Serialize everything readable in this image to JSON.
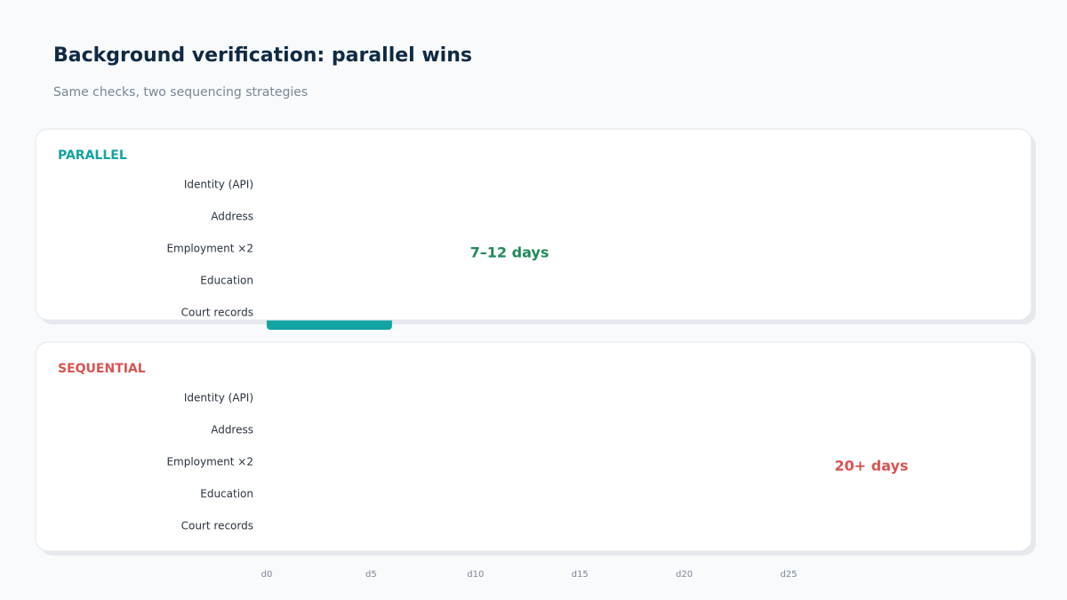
{
  "chart_data": {
    "type": "gantt",
    "title": "Background verification: parallel wins",
    "subtitle": "Same checks, two sequencing strategies",
    "xlim": [
      0,
      30
    ],
    "xticks": [
      {
        "value": 0,
        "label": "d0"
      },
      {
        "value": 5,
        "label": "d5"
      },
      {
        "value": 10,
        "label": "d10"
      },
      {
        "value": 15,
        "label": "d15"
      },
      {
        "value": 20,
        "label": "d20"
      },
      {
        "value": 25,
        "label": "d25"
      }
    ],
    "panels": [
      {
        "label": "PARALLEL",
        "color": "#14a3a3",
        "annotation": "7–12 days",
        "annotation_color": "#1e8a5a",
        "rows": [
          {
            "label": "Identity (API)"
          },
          {
            "label": "Address"
          },
          {
            "label": "Employment ×2"
          },
          {
            "label": "Education"
          },
          {
            "label": "Court records",
            "start": 0,
            "end": 6
          }
        ]
      },
      {
        "label": "SEQUENTIAL",
        "color": "#d9534f",
        "annotation": "20+ days",
        "annotation_color": "#d9534f",
        "rows": [
          {
            "label": "Identity (API)"
          },
          {
            "label": "Address"
          },
          {
            "label": "Employment ×2"
          },
          {
            "label": "Education"
          },
          {
            "label": "Court records"
          }
        ]
      }
    ]
  }
}
